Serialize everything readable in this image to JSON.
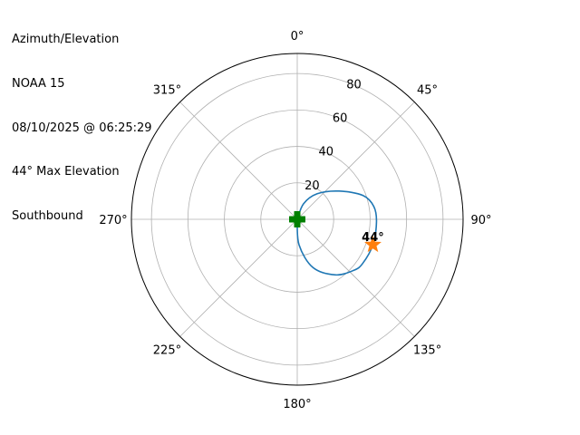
{
  "title_lines": [
    "Azimuth/Elevation",
    "NOAA 15",
    "08/10/2025 @ 06:25:29",
    "44° Max Elevation",
    "Southbound"
  ],
  "chart_data": {
    "type": "polar-line",
    "theta_zero": "north",
    "theta_direction": "clockwise",
    "angle_ticks": [
      {
        "deg": 0,
        "label": "0°"
      },
      {
        "deg": 45,
        "label": "45°"
      },
      {
        "deg": 90,
        "label": "90°"
      },
      {
        "deg": 135,
        "label": "135°"
      },
      {
        "deg": 180,
        "label": "180°"
      },
      {
        "deg": 225,
        "label": "225°"
      },
      {
        "deg": 270,
        "label": "270°"
      },
      {
        "deg": 315,
        "label": "315°"
      }
    ],
    "radial_ticks": [
      20,
      40,
      60,
      80
    ],
    "radial_tick_labels": [
      "20",
      "40",
      "60",
      "80"
    ],
    "rlim": [
      0,
      91
    ],
    "grid": true,
    "track": {
      "color": "#1f77b4",
      "azimuth": [
        10,
        22,
        38,
        56,
        70,
        80.5,
        92,
        108.6,
        124,
        132,
        145.5,
        162,
        176,
        180
      ],
      "elevation": [
        0,
        9.2,
        17.8,
        27.7,
        38.3,
        42.6,
        43.5,
        43.8,
        43.3,
        41.8,
        37,
        27.8,
        14,
        0
      ]
    },
    "start_marker": {
      "azimuth": 0,
      "elevation": 0,
      "color": "#008000",
      "shape": "plus-filled"
    },
    "max_marker": {
      "azimuth": 108.6,
      "elevation": 43.8,
      "color": "#ff7f0e",
      "shape": "star",
      "label": "44°"
    }
  }
}
